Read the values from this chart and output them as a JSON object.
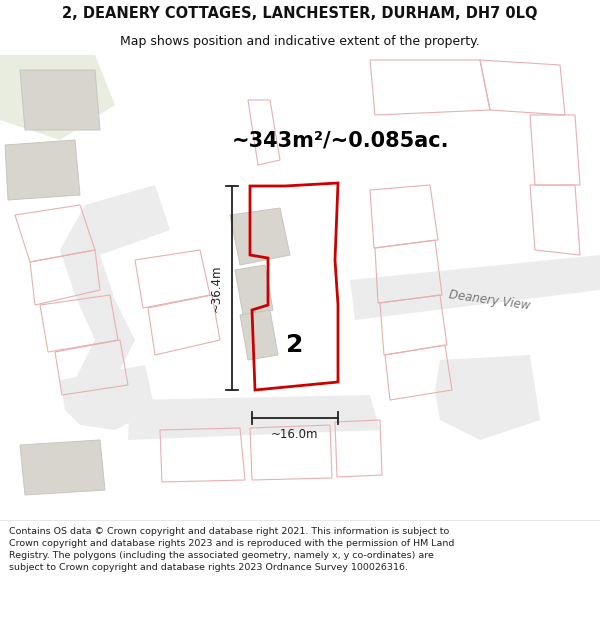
{
  "title_line1": "2, DEANERY COTTAGES, LANCHESTER, DURHAM, DH7 0LQ",
  "title_line2": "Map shows position and indicative extent of the property.",
  "area_text": "~343m²/~0.085ac.",
  "label_2": "2",
  "dim_width": "~16.0m",
  "dim_height": "~36.4m",
  "road_label": "Deanery View",
  "footer_text": "Contains OS data © Crown copyright and database right 2021. This information is subject to Crown copyright and database rights 2023 and is reproduced with the permission of HM Land Registry. The polygons (including the associated geometry, namely x, y co-ordinates) are subject to Crown copyright and database rights 2023 Ordnance Survey 100026316.",
  "bg_color": "#ffffff",
  "map_bg": "#f7f5f2",
  "road_outline_color": "#e8b0b0",
  "road_bg_color": "#ffffff",
  "building_fill": "#d8d5ce",
  "building_outline": "#c8c5be",
  "green_area_color": "#e8ede0",
  "red_outline_color": "#cc0000",
  "red_fill_color": "none",
  "dim_line_color": "#222222",
  "text_color": "#111111",
  "road_text_color": "#777777"
}
